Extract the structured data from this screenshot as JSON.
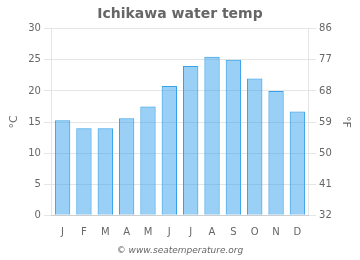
{
  "chart_data": {
    "type": "bar",
    "title": "Ichikawa water temp",
    "annotations": [
      "© www.seatemperature.org"
    ],
    "categories": [
      "J",
      "F",
      "M",
      "A",
      "M",
      "J",
      "J",
      "A",
      "S",
      "O",
      "N",
      "D"
    ],
    "values": [
      15.3,
      14.0,
      14.0,
      15.6,
      17.5,
      20.8,
      24.0,
      25.5,
      25.0,
      22.0,
      20.0,
      16.7
    ],
    "ylabel": "°C",
    "y2label": "°F",
    "ylim": [
      0,
      30
    ],
    "yticks": [
      0,
      5,
      10,
      15,
      20,
      25,
      30
    ],
    "y2lim": [
      32,
      86
    ],
    "y2ticks": [
      32,
      41,
      50,
      59,
      68,
      77,
      86
    ],
    "grid": true
  }
}
